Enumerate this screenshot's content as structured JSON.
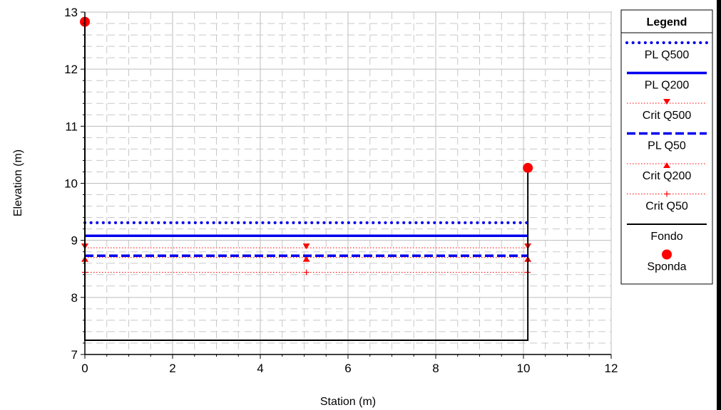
{
  "chart_data": {
    "type": "line",
    "title": "",
    "xlabel": "Station (m)",
    "ylabel": "Elevation (m)",
    "xlim": [
      0,
      12
    ],
    "ylim": [
      7,
      13
    ],
    "x_ticks": [
      0,
      2,
      4,
      6,
      8,
      10,
      12
    ],
    "y_ticks": [
      7,
      8,
      9,
      10,
      11,
      12,
      13
    ],
    "grid": true,
    "legend_title": "Legend",
    "legend_position": "right",
    "series": [
      {
        "name": "PL Q500",
        "style": "dotted",
        "color": "#0000ee",
        "x": [
          0,
          10.1
        ],
        "y": [
          9.31,
          9.31
        ]
      },
      {
        "name": "PL Q200",
        "style": "solid",
        "color": "#0000ee",
        "x": [
          0,
          10.1
        ],
        "y": [
          9.08,
          9.08
        ]
      },
      {
        "name": "Crit Q500",
        "style": "dotted-thin",
        "color": "#ff0000",
        "marker": "triangle-down",
        "x": [
          0,
          5.05,
          10.1
        ],
        "y": [
          8.87,
          8.87,
          8.87
        ]
      },
      {
        "name": "PL Q50",
        "style": "dashed",
        "color": "#0000ee",
        "x": [
          0,
          10.1
        ],
        "y": [
          8.73,
          8.73
        ]
      },
      {
        "name": "Crit Q200",
        "style": "dotted-thin",
        "color": "#ff0000",
        "marker": "triangle-up",
        "x": [
          0,
          5.05,
          10.1
        ],
        "y": [
          8.7,
          8.7,
          8.7
        ]
      },
      {
        "name": "Crit Q50",
        "style": "dotted-thin",
        "color": "#ff0000",
        "marker": "plus",
        "x": [
          0,
          5.05,
          10.1
        ],
        "y": [
          8.44,
          8.44,
          8.44
        ]
      },
      {
        "name": "Fondo",
        "style": "solid",
        "color": "#000000",
        "x": [
          0,
          0,
          10.1,
          10.1
        ],
        "y": [
          12.83,
          7.25,
          7.25,
          10.27
        ]
      },
      {
        "name": "Sponda",
        "style": "marker-only",
        "color": "#ff0000",
        "marker": "circle",
        "x": [
          0,
          10.1
        ],
        "y": [
          12.83,
          10.27
        ]
      }
    ]
  }
}
